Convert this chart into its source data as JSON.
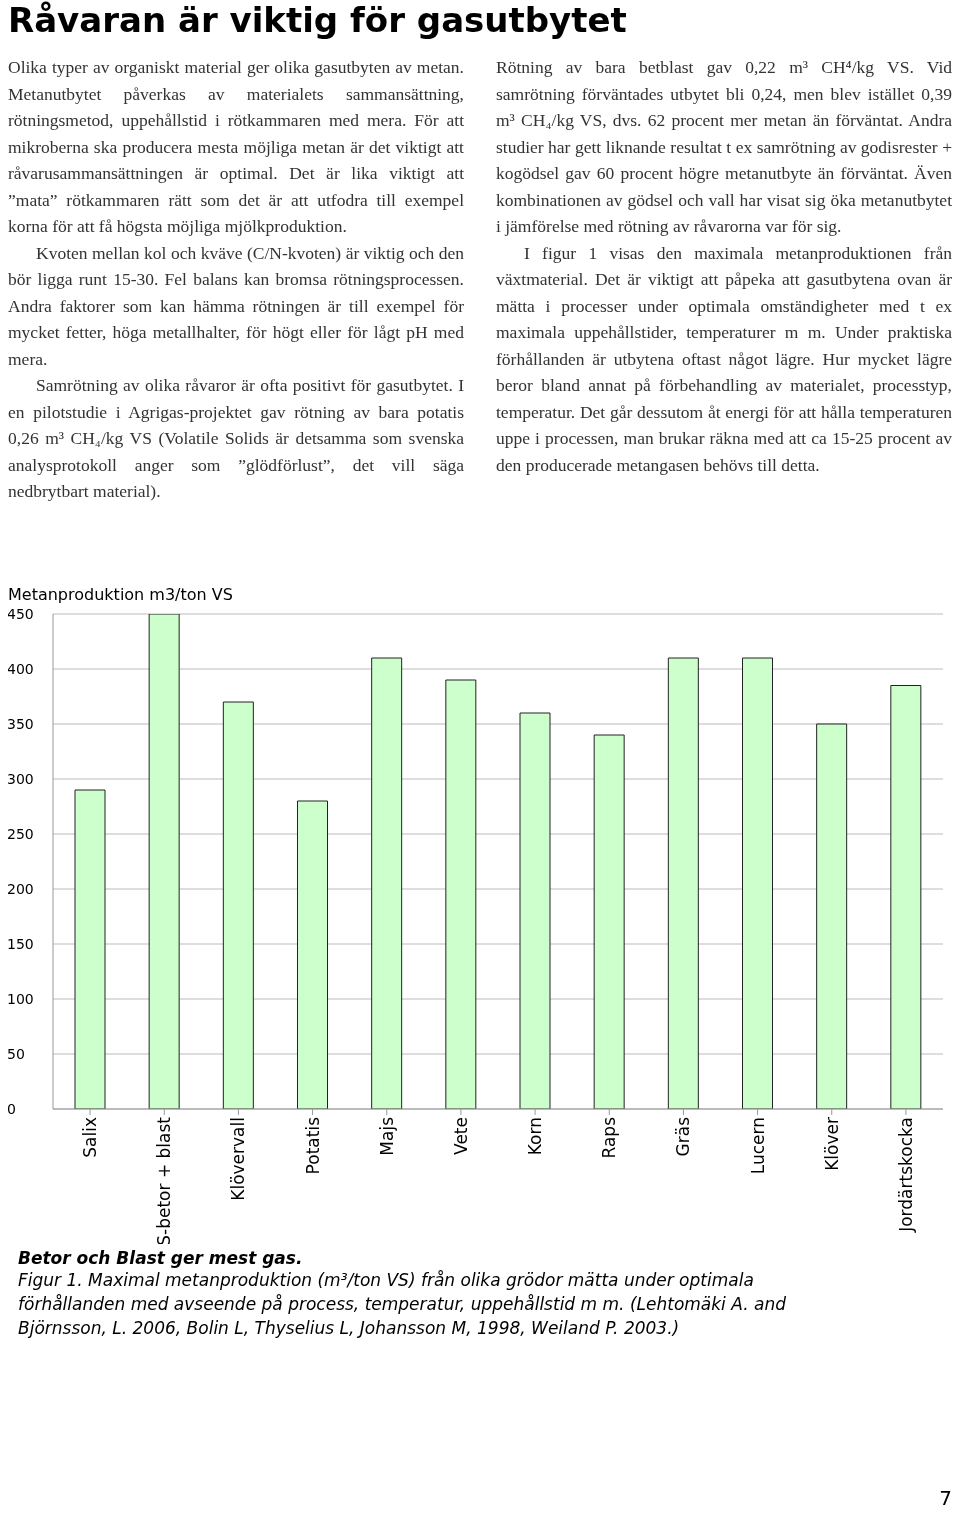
{
  "chart_data": {
    "type": "bar",
    "title": "Råvaran är viktig för gasutbytet",
    "ylabel": "Metanproduktion m3/ton VS",
    "categories": [
      "Salix",
      "S-betor + blast",
      "Klövervall",
      "Potatis",
      "Majs",
      "Vete",
      "Korn",
      "Raps",
      "Gräs",
      "Lucern",
      "Klöver",
      "Jordärtskocka"
    ],
    "values": [
      290,
      450,
      370,
      280,
      410,
      390,
      360,
      340,
      410,
      410,
      350,
      385
    ],
    "color": "#ccffcc",
    "ylim": [
      0,
      450
    ],
    "yticks": [
      0,
      50,
      100,
      150,
      200,
      250,
      300,
      350,
      400,
      450
    ],
    "grid": "y",
    "annotations": [
      "Olika typer av organiskt material ger olika gasutbyten av metan. Metanutbytet påverkas av materialets sammansättning, rötningsmetod, uppehållstid i rötkammaren med mera. För att mikroberna ska producera mesta möjliga metan är det viktigt att råvarusammansättningen är optimal. Det är lika viktigt att ”mata” rötkammaren rätt som det är att utfodra till exempel korna för att få högsta möjliga mjölkproduktion.",
      "Kvoten mellan kol och kväve (C/N-kvoten) är viktig och den bör ligga runt 15-30. Fel balans kan bromsa rötningsprocessen. Andra faktorer som kan hämma rötningen är till exempel för mycket fetter, höga metallhalter, för högt eller för lågt pH med mera.",
      "Samrötning av olika råvaror är ofta positivt för gasutbytet. I en pilotstudie i Agrigas-projektet gav rötning av bara potatis 0,26 m³ CH₄/kg VS (Volatile Solids är detsamma som svenska analysprotokoll anger som ”glödförlust”, det vill säga nedbrytbart material).",
      "Rötning av bara betblast gav 0,22 m³ CH⁴/kg VS. Vid samrötning förväntades utbytet bli 0,24, men blev istället 0,39 m³ CH₄/kg VS, dvs. 62 procent mer metan än förväntat. Andra studier har gett liknande resultat t ex samrötning av godisrester + kogödsel gav 60 procent högre metanutbyte än förväntat. Även kombinationen av gödsel och vall har visat sig öka metanutbytet i jämförelse med rötning av råvarorna var för sig.",
      "I figur 1 visas den maximala metanproduktionen från växtmaterial. Det är viktigt att påpeka att gasutbytena ovan är mätta i processer under optimala omständigheter med t ex maximala uppehållstider, temperaturer m m. Under praktiska förhållanden är utbytena oftast något lägre. Hur mycket lägre beror bland annat på förbehandling av materialet, processtyp, temperatur. Det går dessutom åt energi för att hålla temperaturen uppe i processen, man brukar räkna med att ca 15-25 procent av den producerade metangasen behövs till detta.",
      "Betor och Blast ger mest gas.",
      "Figur 1. Maximal metanproduktion (m³/ton VS) från olika grödor mätta under optimala förhållanden med avseende på process, temperatur, uppehållstid m m.  (Lehtomäki A. and Björnsson, L. 2006, Bolin L, Thyselius L, Johansson M, 1998, Weiland P. 2003.)",
      "7"
    ]
  }
}
